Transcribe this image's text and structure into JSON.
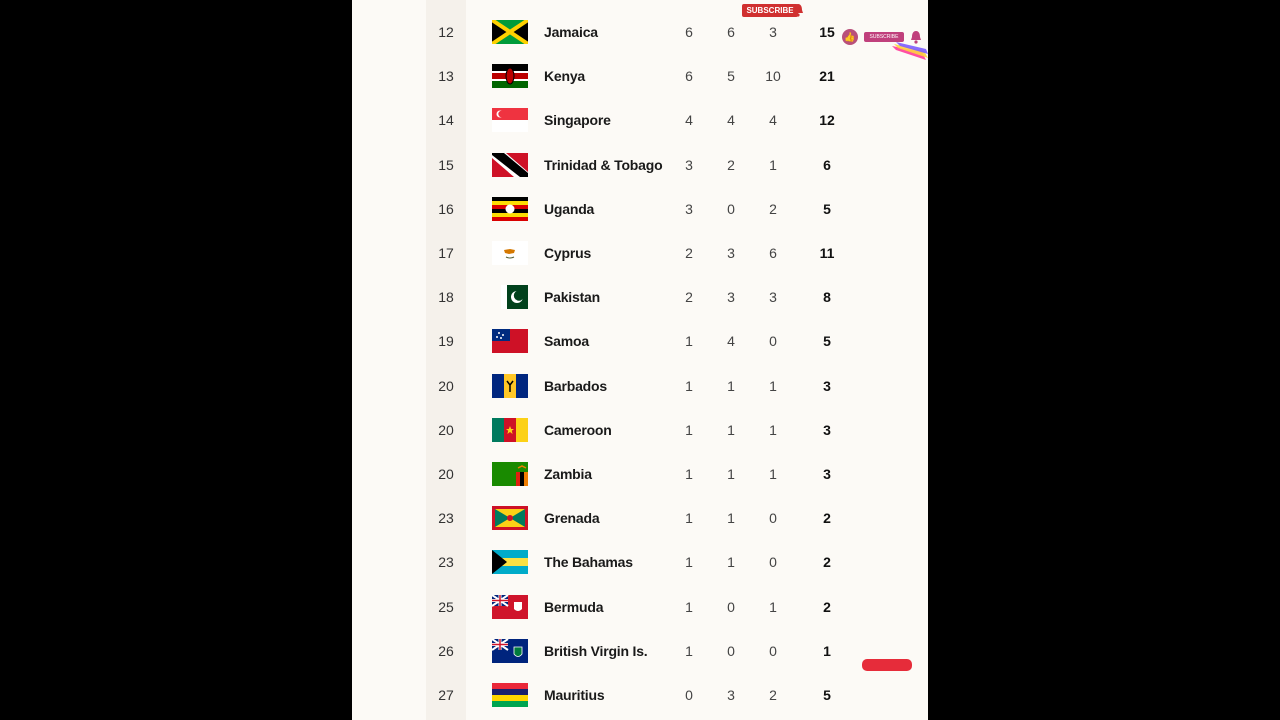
{
  "overlay": {
    "subscribe_label": "SUBSCRIBE",
    "subscribe_small_label": "SUBSCRIBE",
    "like_icon": "thumbs-up-icon",
    "bell_icon": "bell-icon"
  },
  "table": {
    "rows": [
      {
        "rank": "12",
        "country": "Jamaica",
        "gold": "6",
        "silver": "6",
        "bronze": "3",
        "total": "15",
        "flag": "jamaica-flag-icon"
      },
      {
        "rank": "13",
        "country": "Kenya",
        "gold": "6",
        "silver": "5",
        "bronze": "10",
        "total": "21",
        "flag": "kenya-flag-icon"
      },
      {
        "rank": "14",
        "country": "Singapore",
        "gold": "4",
        "silver": "4",
        "bronze": "4",
        "total": "12",
        "flag": "singapore-flag-icon"
      },
      {
        "rank": "15",
        "country": "Trinidad & Tobago",
        "gold": "3",
        "silver": "2",
        "bronze": "1",
        "total": "6",
        "flag": "trinidad-tobago-flag-icon"
      },
      {
        "rank": "16",
        "country": "Uganda",
        "gold": "3",
        "silver": "0",
        "bronze": "2",
        "total": "5",
        "flag": "uganda-flag-icon"
      },
      {
        "rank": "17",
        "country": "Cyprus",
        "gold": "2",
        "silver": "3",
        "bronze": "6",
        "total": "11",
        "flag": "cyprus-flag-icon"
      },
      {
        "rank": "18",
        "country": "Pakistan",
        "gold": "2",
        "silver": "3",
        "bronze": "3",
        "total": "8",
        "flag": "pakistan-flag-icon"
      },
      {
        "rank": "19",
        "country": "Samoa",
        "gold": "1",
        "silver": "4",
        "bronze": "0",
        "total": "5",
        "flag": "samoa-flag-icon"
      },
      {
        "rank": "20",
        "country": "Barbados",
        "gold": "1",
        "silver": "1",
        "bronze": "1",
        "total": "3",
        "flag": "barbados-flag-icon"
      },
      {
        "rank": "20",
        "country": "Cameroon",
        "gold": "1",
        "silver": "1",
        "bronze": "1",
        "total": "3",
        "flag": "cameroon-flag-icon"
      },
      {
        "rank": "20",
        "country": "Zambia",
        "gold": "1",
        "silver": "1",
        "bronze": "1",
        "total": "3",
        "flag": "zambia-flag-icon"
      },
      {
        "rank": "23",
        "country": "Grenada",
        "gold": "1",
        "silver": "1",
        "bronze": "0",
        "total": "2",
        "flag": "grenada-flag-icon"
      },
      {
        "rank": "23",
        "country": "The Bahamas",
        "gold": "1",
        "silver": "1",
        "bronze": "0",
        "total": "2",
        "flag": "bahamas-flag-icon"
      },
      {
        "rank": "25",
        "country": "Bermuda",
        "gold": "1",
        "silver": "0",
        "bronze": "1",
        "total": "2",
        "flag": "bermuda-flag-icon"
      },
      {
        "rank": "26",
        "country": "British Virgin Is.",
        "gold": "1",
        "silver": "0",
        "bronze": "0",
        "total": "1",
        "flag": "british-virgin-islands-flag-icon"
      },
      {
        "rank": "27",
        "country": "Mauritius",
        "gold": "0",
        "silver": "3",
        "bronze": "2",
        "total": "5",
        "flag": "mauritius-flag-icon"
      }
    ]
  }
}
